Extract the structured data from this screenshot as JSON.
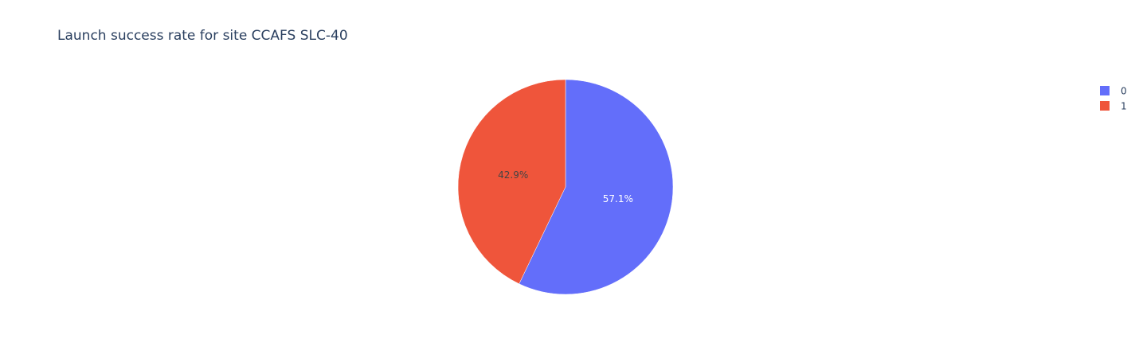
{
  "chart_data": {
    "type": "pie",
    "title": "Launch success rate for site CCAFS SLC-40",
    "labels": [
      "0",
      "1"
    ],
    "values": [
      57.1,
      42.9
    ],
    "value_labels": [
      "57.1%",
      "42.9%"
    ],
    "colors": [
      "#636efa",
      "#EF553B"
    ],
    "label_colors": [
      "#ffffff",
      "#444444"
    ],
    "legend": {
      "placement": "top-right",
      "entries": [
        "0",
        "1"
      ]
    },
    "direction": "clockwise",
    "start_angle_deg": 90
  }
}
